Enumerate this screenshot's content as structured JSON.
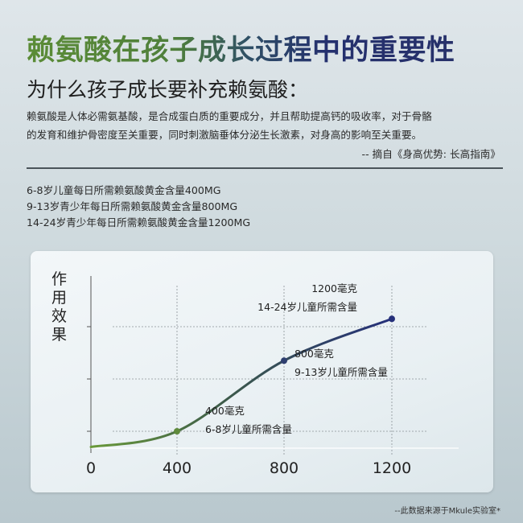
{
  "header": {
    "title": "赖氨酸在孩子成长过程中的重要性",
    "subtitle": "为什么孩子成长要补充赖氨酸：",
    "paragraph": [
      "赖氨酸是人体必需氨基酸，是合成蛋白质的重要成分，并且帮助提高钙的吸收率，对于骨骼",
      "的发育和维护骨密度至关重要，同时刺激脑垂体分泌生长激素，对身高的影响至关重要。"
    ],
    "citation": "-- 摘自《身高优势: 长高指南》"
  },
  "requirements": [
    "6-8岁儿童每日所需赖氨酸黄金含量400MG",
    "9-13岁青少年每日所需赖氨酸黄金含量800MG",
    "14-24岁青少年每日所需赖氨酸黄金含量1200MG"
  ],
  "chart_data": {
    "type": "line",
    "title": "",
    "ylabel": "作用效果",
    "xlabel": "",
    "x_tick_labels": [
      "0",
      "400",
      "800",
      "1200"
    ],
    "x": [
      0,
      400,
      800,
      1200
    ],
    "y": [
      0.7,
      1,
      2.35,
      3.15
    ],
    "y_ticks_unlabeled": 3,
    "grid": "dashed",
    "line_colors": {
      "start": "#6a9a3a",
      "end": "#25307a"
    },
    "annotations": [
      {
        "x": 400,
        "lines": [
          "400毫克",
          "6-8岁儿童所需含量"
        ]
      },
      {
        "x": 800,
        "lines": [
          "800毫克",
          "9-13岁儿童所需含量"
        ]
      },
      {
        "x": 1200,
        "lines": [
          "1200毫克",
          "14-24岁儿童所需含量"
        ]
      }
    ]
  },
  "footnote": "--此数据来源于Mkule实验室*"
}
